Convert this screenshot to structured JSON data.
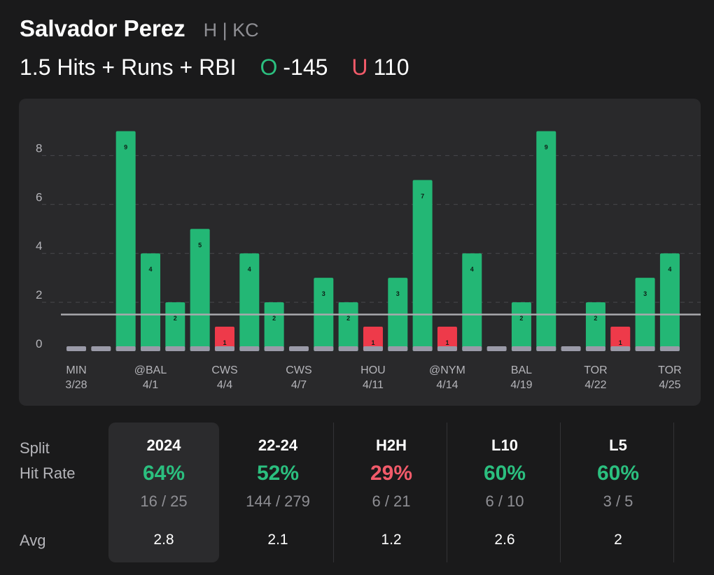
{
  "header": {
    "player_name": "Salvador Perez",
    "team": "H | KC",
    "prop": "1.5 Hits + Runs + RBI",
    "over_label": "O",
    "over_odds": "-145",
    "under_label": "U",
    "under_odds": "110"
  },
  "colors": {
    "hit": "#23b775",
    "miss": "#ee3a4a",
    "zero": "#9a9aa8",
    "line": "#a9a9ad",
    "green_text": "#2bbf7f",
    "red_text": "#f25b6a"
  },
  "chart_data": {
    "type": "bar",
    "title": "1.5 Hits + Runs + RBI",
    "line_value": 1.5,
    "ylim": [
      0,
      9
    ],
    "y_ticks": [
      "0",
      "2",
      "4",
      "6",
      "8"
    ],
    "values": [
      0,
      0,
      9,
      4,
      2,
      5,
      1,
      4,
      2,
      0,
      3,
      2,
      1,
      3,
      7,
      1,
      4,
      0,
      2,
      9,
      0,
      2,
      1,
      3,
      4
    ],
    "x_labels": [
      {
        "index": 0,
        "opp": "MIN",
        "date": "3/28"
      },
      {
        "index": 3,
        "opp": "@BAL",
        "date": "4/1"
      },
      {
        "index": 6,
        "opp": "CWS",
        "date": "4/4"
      },
      {
        "index": 9,
        "opp": "CWS",
        "date": "4/7"
      },
      {
        "index": 12,
        "opp": "HOU",
        "date": "4/11"
      },
      {
        "index": 15,
        "opp": "@NYM",
        "date": "4/14"
      },
      {
        "index": 18,
        "opp": "BAL",
        "date": "4/19"
      },
      {
        "index": 21,
        "opp": "TOR",
        "date": "4/22"
      },
      {
        "index": 24,
        "opp": "TOR",
        "date": "4/25"
      }
    ]
  },
  "stats": {
    "labels": {
      "split": "Split",
      "hit_rate": "Hit Rate",
      "avg": "Avg"
    },
    "columns": [
      {
        "split": "2024",
        "rate": "64%",
        "frac": "16 / 25",
        "avg": "2.8",
        "status": "good"
      },
      {
        "split": "22-24",
        "rate": "52%",
        "frac": "144 / 279",
        "avg": "2.1",
        "status": "good"
      },
      {
        "split": "H2H",
        "rate": "29%",
        "frac": "6 / 21",
        "avg": "1.2",
        "status": "bad"
      },
      {
        "split": "L10",
        "rate": "60%",
        "frac": "6 / 10",
        "avg": "2.6",
        "status": "good"
      },
      {
        "split": "L5",
        "rate": "60%",
        "frac": "3 / 5",
        "avg": "2",
        "status": "good"
      }
    ]
  }
}
